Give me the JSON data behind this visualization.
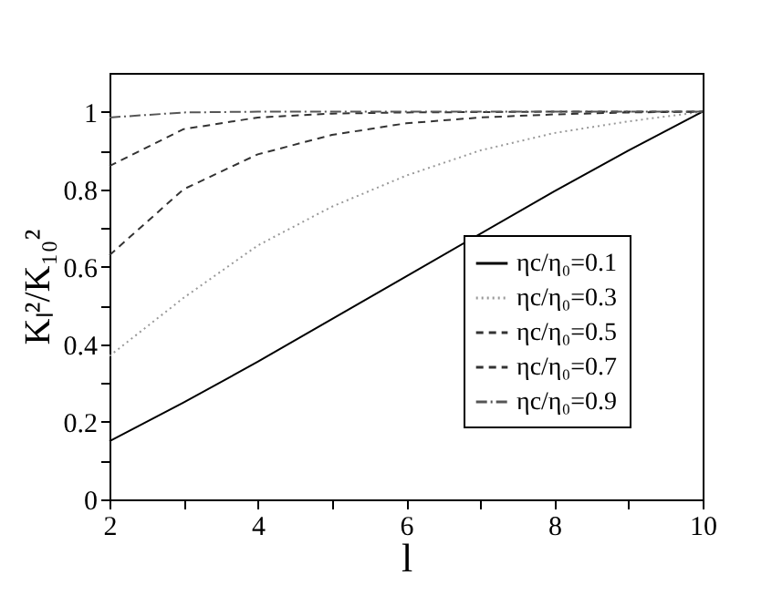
{
  "chart_data": {
    "type": "line",
    "xlabel": "l",
    "ylabel": "Kₗ²/K₁₀²",
    "x": [
      2,
      3,
      4,
      5,
      6,
      7,
      8,
      9,
      10
    ],
    "series": [
      {
        "name": "ηc/η₀=0.1",
        "color": "#000000",
        "line_style": "solid",
        "values": [
          0.15,
          0.25,
          0.355,
          0.465,
          0.575,
          0.685,
          0.795,
          0.9,
          1.0
        ]
      },
      {
        "name": "ηc/η₀=0.3",
        "color": "#999999",
        "line_style": "dotted",
        "values": [
          0.37,
          0.52,
          0.655,
          0.755,
          0.835,
          0.9,
          0.945,
          0.975,
          1.0
        ]
      },
      {
        "name": "ηc/η₀=0.5",
        "color": "#333333",
        "line_style": "dashed",
        "values": [
          0.63,
          0.8,
          0.89,
          0.94,
          0.97,
          0.985,
          0.993,
          0.998,
          1.0
        ]
      },
      {
        "name": "ηc/η₀=0.7",
        "color": "#333333",
        "line_style": "dashed",
        "values": [
          0.86,
          0.955,
          0.985,
          0.995,
          0.998,
          0.999,
          1.0,
          1.0,
          1.0
        ]
      },
      {
        "name": "ηc/η₀=0.9",
        "color": "#555555",
        "line_style": "dashdot",
        "values": [
          0.985,
          0.998,
          1.0,
          1.0,
          1.0,
          1.0,
          1.0,
          1.0,
          1.0
        ]
      }
    ],
    "xlim": [
      2,
      10
    ],
    "ylim": [
      0,
      1.1
    ],
    "xticks": [
      2,
      {
        "value": 3,
        "label": null
      },
      4,
      {
        "value": 5,
        "label": null
      },
      6,
      {
        "value": 7,
        "label": null
      },
      8,
      {
        "value": 9,
        "label": null
      },
      10
    ],
    "yticks": [
      0,
      {
        "value": 0.1,
        "label": null
      },
      0.2,
      {
        "value": 0.3,
        "label": null
      },
      0.4,
      {
        "value": 0.5,
        "label": null
      },
      0.6,
      {
        "value": 0.7,
        "label": null
      },
      0.8,
      {
        "value": 0.9,
        "label": null
      },
      1
    ],
    "grid": false,
    "legend": "bottom right",
    "marker": "none"
  }
}
